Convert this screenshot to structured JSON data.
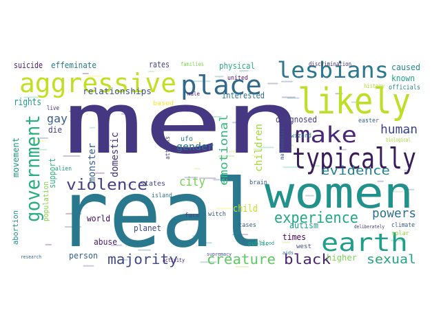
{
  "word_cloud": {
    "palette": "viridis",
    "background": "#ffffff",
    "words": [
      {
        "text": "men",
        "color": "#453781"
      },
      {
        "text": "real",
        "color": "#2a788e"
      },
      {
        "text": "women",
        "color": "#21918c"
      },
      {
        "text": "likely",
        "color": "#bddf26"
      },
      {
        "text": "aggressive",
        "color": "#c2df23"
      },
      {
        "text": "typically",
        "color": "#3b1c5b"
      },
      {
        "text": "earth",
        "color": "#1f9e89"
      },
      {
        "text": "place",
        "color": "#31688e"
      },
      {
        "text": "lesbians",
        "color": "#2a788e"
      },
      {
        "text": "make",
        "color": "#482878"
      },
      {
        "text": "government",
        "color": "#29af7f"
      },
      {
        "text": "violence",
        "color": "#433e85"
      },
      {
        "text": "experience",
        "color": "#22a884"
      },
      {
        "text": "majority",
        "color": "#3e4a89"
      },
      {
        "text": "creature",
        "color": "#5ec962"
      },
      {
        "text": "black",
        "color": "#482475"
      },
      {
        "text": "sexual",
        "color": "#20a386"
      },
      {
        "text": "evidence",
        "color": "#26828e"
      },
      {
        "text": "human",
        "color": "#414487"
      },
      {
        "text": "powers",
        "color": "#2d708e"
      },
      {
        "text": "emotional",
        "color": "#35b779"
      },
      {
        "text": "city",
        "color": "#75d054"
      },
      {
        "text": "gender",
        "color": "#2c728e"
      },
      {
        "text": "domestic",
        "color": "#46337f"
      },
      {
        "text": "monster",
        "color": "#355f8d"
      },
      {
        "text": "children",
        "color": "#a2da37"
      },
      {
        "text": "rights",
        "color": "#1e9c89"
      },
      {
        "text": "gay",
        "color": "#365d8d"
      },
      {
        "text": "die",
        "color": "#433d84"
      },
      {
        "text": "support",
        "color": "#2db27d"
      },
      {
        "text": "population",
        "color": "#86d549"
      },
      {
        "text": "abortion",
        "color": "#238a8d"
      },
      {
        "text": "movement",
        "color": "#1f948c"
      },
      {
        "text": "suicide",
        "color": "#481b6d"
      },
      {
        "text": "effeminate",
        "color": "#287c8e"
      },
      {
        "text": "rates",
        "color": "#404688"
      },
      {
        "text": "physical",
        "color": "#28ae80"
      },
      {
        "text": "interested",
        "color": "#2c738e"
      },
      {
        "text": "relationships",
        "color": "#3b528b"
      },
      {
        "text": "diagnosed",
        "color": "#433e85"
      },
      {
        "text": "caused",
        "color": "#23888e"
      },
      {
        "text": "known",
        "color": "#1fa088"
      },
      {
        "text": "world",
        "color": "#46085c"
      },
      {
        "text": "abuse",
        "color": "#482071"
      },
      {
        "text": "planet",
        "color": "#3e4989"
      },
      {
        "text": "person",
        "color": "#35608d"
      },
      {
        "text": "child",
        "color": "#c8e020"
      },
      {
        "text": "times",
        "color": "#440154"
      },
      {
        "text": "higher",
        "color": "#7ad151"
      },
      {
        "text": "autism",
        "color": "#1fa188"
      },
      {
        "text": "states",
        "color": "#3f4788"
      },
      {
        "text": "ufo",
        "color": "#2a778e"
      },
      {
        "text": "united",
        "color": "#471063"
      },
      {
        "text": "west",
        "color": "#3b518b"
      },
      {
        "text": "solar",
        "color": "#95d840"
      },
      {
        "text": "climate",
        "color": "#38588c"
      },
      {
        "text": "public",
        "color": "#25ab82"
      },
      {
        "text": "island",
        "color": "#2b748e"
      },
      {
        "text": "brain",
        "color": "#39568c"
      },
      {
        "text": "witch",
        "color": "#3a538b"
      },
      {
        "text": "face",
        "color": "#3f4889"
      },
      {
        "text": "cases",
        "color": "#38598c"
      },
      {
        "text": "based",
        "color": "#fde725"
      },
      {
        "text": "attacks",
        "color": "#433e85"
      },
      {
        "text": "wizard",
        "color": "#2a768e"
      },
      {
        "text": "easter",
        "color": "#32648e"
      },
      {
        "text": "live",
        "color": "#472d7b"
      },
      {
        "text": "alien",
        "color": "#1e9b8a"
      },
      {
        "text": "mathematics",
        "color": "#3a548c"
      },
      {
        "text": "history",
        "color": "#b5de2b"
      },
      {
        "text": "officials",
        "color": "#25848e"
      },
      {
        "text": "discrimination",
        "color": "#472f7d"
      },
      {
        "text": "activity",
        "color": "#48186a"
      },
      {
        "text": "biological",
        "color": "#a8db34"
      },
      {
        "text": "male",
        "color": "#482475"
      },
      {
        "text": "families",
        "color": "#7fd34e"
      },
      {
        "text": "deliberately",
        "color": "#46327e"
      },
      {
        "text": "research",
        "color": "#34618d"
      },
      {
        "text": "supremacy",
        "color": "#3d4e8a"
      },
      {
        "text": "aids",
        "color": "#2f6b8e"
      },
      {
        "text": "blood",
        "color": "#20938c"
      }
    ]
  }
}
